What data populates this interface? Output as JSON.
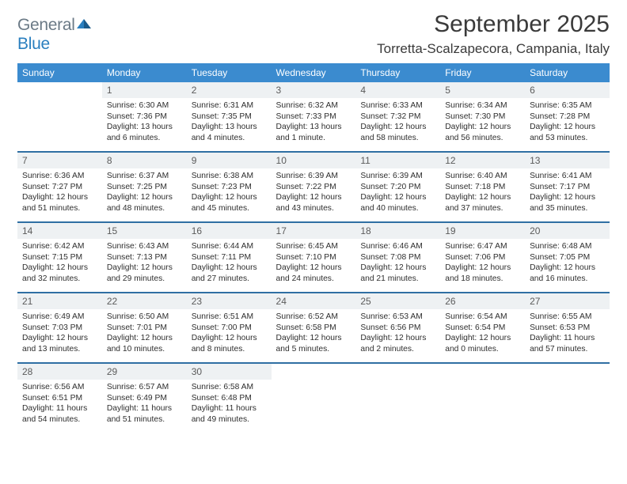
{
  "logo": {
    "word1": "General",
    "word2": "Blue"
  },
  "title": "September 2025",
  "location": "Torretta-Scalzapecora, Campania, Italy",
  "colors": {
    "header_bg": "#3b8bcf",
    "header_text": "#ffffff",
    "daynum_bg": "#eef1f3",
    "row_border": "#2f6fa3",
    "logo_gray": "#6b7a86",
    "logo_blue": "#2a7fbf"
  },
  "weekdays": [
    "Sunday",
    "Monday",
    "Tuesday",
    "Wednesday",
    "Thursday",
    "Friday",
    "Saturday"
  ],
  "weeks": [
    [
      null,
      {
        "n": "1",
        "sr": "6:30 AM",
        "ss": "7:36 PM",
        "d": "13 hours and 6 minutes."
      },
      {
        "n": "2",
        "sr": "6:31 AM",
        "ss": "7:35 PM",
        "d": "13 hours and 4 minutes."
      },
      {
        "n": "3",
        "sr": "6:32 AM",
        "ss": "7:33 PM",
        "d": "13 hours and 1 minute."
      },
      {
        "n": "4",
        "sr": "6:33 AM",
        "ss": "7:32 PM",
        "d": "12 hours and 58 minutes."
      },
      {
        "n": "5",
        "sr": "6:34 AM",
        "ss": "7:30 PM",
        "d": "12 hours and 56 minutes."
      },
      {
        "n": "6",
        "sr": "6:35 AM",
        "ss": "7:28 PM",
        "d": "12 hours and 53 minutes."
      }
    ],
    [
      {
        "n": "7",
        "sr": "6:36 AM",
        "ss": "7:27 PM",
        "d": "12 hours and 51 minutes."
      },
      {
        "n": "8",
        "sr": "6:37 AM",
        "ss": "7:25 PM",
        "d": "12 hours and 48 minutes."
      },
      {
        "n": "9",
        "sr": "6:38 AM",
        "ss": "7:23 PM",
        "d": "12 hours and 45 minutes."
      },
      {
        "n": "10",
        "sr": "6:39 AM",
        "ss": "7:22 PM",
        "d": "12 hours and 43 minutes."
      },
      {
        "n": "11",
        "sr": "6:39 AM",
        "ss": "7:20 PM",
        "d": "12 hours and 40 minutes."
      },
      {
        "n": "12",
        "sr": "6:40 AM",
        "ss": "7:18 PM",
        "d": "12 hours and 37 minutes."
      },
      {
        "n": "13",
        "sr": "6:41 AM",
        "ss": "7:17 PM",
        "d": "12 hours and 35 minutes."
      }
    ],
    [
      {
        "n": "14",
        "sr": "6:42 AM",
        "ss": "7:15 PM",
        "d": "12 hours and 32 minutes."
      },
      {
        "n": "15",
        "sr": "6:43 AM",
        "ss": "7:13 PM",
        "d": "12 hours and 29 minutes."
      },
      {
        "n": "16",
        "sr": "6:44 AM",
        "ss": "7:11 PM",
        "d": "12 hours and 27 minutes."
      },
      {
        "n": "17",
        "sr": "6:45 AM",
        "ss": "7:10 PM",
        "d": "12 hours and 24 minutes."
      },
      {
        "n": "18",
        "sr": "6:46 AM",
        "ss": "7:08 PM",
        "d": "12 hours and 21 minutes."
      },
      {
        "n": "19",
        "sr": "6:47 AM",
        "ss": "7:06 PM",
        "d": "12 hours and 18 minutes."
      },
      {
        "n": "20",
        "sr": "6:48 AM",
        "ss": "7:05 PM",
        "d": "12 hours and 16 minutes."
      }
    ],
    [
      {
        "n": "21",
        "sr": "6:49 AM",
        "ss": "7:03 PM",
        "d": "12 hours and 13 minutes."
      },
      {
        "n": "22",
        "sr": "6:50 AM",
        "ss": "7:01 PM",
        "d": "12 hours and 10 minutes."
      },
      {
        "n": "23",
        "sr": "6:51 AM",
        "ss": "7:00 PM",
        "d": "12 hours and 8 minutes."
      },
      {
        "n": "24",
        "sr": "6:52 AM",
        "ss": "6:58 PM",
        "d": "12 hours and 5 minutes."
      },
      {
        "n": "25",
        "sr": "6:53 AM",
        "ss": "6:56 PM",
        "d": "12 hours and 2 minutes."
      },
      {
        "n": "26",
        "sr": "6:54 AM",
        "ss": "6:54 PM",
        "d": "12 hours and 0 minutes."
      },
      {
        "n": "27",
        "sr": "6:55 AM",
        "ss": "6:53 PM",
        "d": "11 hours and 57 minutes."
      }
    ],
    [
      {
        "n": "28",
        "sr": "6:56 AM",
        "ss": "6:51 PM",
        "d": "11 hours and 54 minutes."
      },
      {
        "n": "29",
        "sr": "6:57 AM",
        "ss": "6:49 PM",
        "d": "11 hours and 51 minutes."
      },
      {
        "n": "30",
        "sr": "6:58 AM",
        "ss": "6:48 PM",
        "d": "11 hours and 49 minutes."
      },
      null,
      null,
      null,
      null
    ]
  ],
  "labels": {
    "sunrise": "Sunrise:",
    "sunset": "Sunset:",
    "daylight": "Daylight:"
  }
}
